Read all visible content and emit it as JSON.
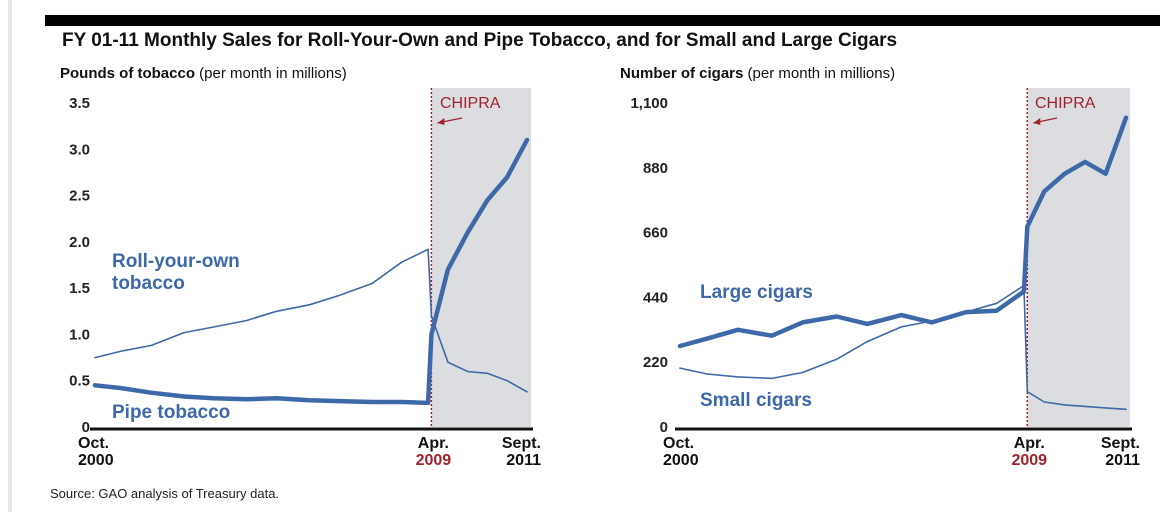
{
  "title": "FY 01-11 Monthly Sales for Roll-Your-Own and Pipe Tobacco, and for Small and Large Cigars",
  "source": "Source: GAO analysis of Treasury data.",
  "colors": {
    "series": "#3e69a8",
    "annotation": "#a0222e",
    "shade": "#dcdde0",
    "axis": "#111111"
  },
  "chart_data": [
    {
      "type": "line",
      "ylabel_bold": "Pounds of tobacco",
      "ylabel_rest": " (per month in millions)",
      "ylim": [
        0,
        3.5
      ],
      "yticks": [
        0,
        0.5,
        1.0,
        1.5,
        2.0,
        2.5,
        3.0,
        3.5
      ],
      "ytick_labels": [
        "0",
        "0.5",
        "1.0",
        "1.5",
        "2.0",
        "2.5",
        "3.0",
        "3.5"
      ],
      "xlim": [
        "2000-10",
        "2011-09"
      ],
      "x_labels": [
        {
          "x": "2000-10",
          "lines": [
            "Oct.",
            "2000"
          ],
          "highlight": false
        },
        {
          "x": "2009-04",
          "lines": [
            "Apr.",
            "2009"
          ],
          "highlight": true
        },
        {
          "x": "2011-09",
          "lines": [
            "Sept.",
            "2011"
          ],
          "highlight": false
        }
      ],
      "annotation": {
        "label": "CHIPRA",
        "x": "2009-04",
        "shade_to": "2011-09"
      },
      "series": [
        {
          "label_lines": [
            "Roll-your-own",
            "tobacco"
          ],
          "width": "thin",
          "x": [
            "2000-10",
            "2001-06",
            "2002-03",
            "2003-01",
            "2003-10",
            "2004-08",
            "2005-05",
            "2006-03",
            "2006-12",
            "2007-10",
            "2008-07",
            "2009-03",
            "2009-04",
            "2009-09",
            "2010-03",
            "2010-09",
            "2011-03",
            "2011-09"
          ],
          "y": [
            0.75,
            0.82,
            0.88,
            1.02,
            1.08,
            1.15,
            1.25,
            1.32,
            1.42,
            1.55,
            1.78,
            1.92,
            1.2,
            0.7,
            0.6,
            0.58,
            0.5,
            0.38
          ]
        },
        {
          "label_lines": [
            "Pipe tobacco"
          ],
          "width": "thick",
          "x": [
            "2000-10",
            "2001-06",
            "2002-03",
            "2003-01",
            "2003-10",
            "2004-08",
            "2005-05",
            "2006-03",
            "2006-12",
            "2007-10",
            "2008-07",
            "2009-03",
            "2009-04",
            "2009-09",
            "2010-03",
            "2010-09",
            "2011-03",
            "2011-09"
          ],
          "y": [
            0.45,
            0.42,
            0.37,
            0.33,
            0.31,
            0.3,
            0.31,
            0.29,
            0.28,
            0.27,
            0.27,
            0.26,
            1.0,
            1.7,
            2.1,
            2.45,
            2.7,
            3.1
          ]
        }
      ]
    },
    {
      "type": "line",
      "ylabel_bold": "Number of cigars",
      "ylabel_rest": " (per month in millions)",
      "ylim": [
        0,
        1100
      ],
      "yticks": [
        0,
        220,
        440,
        660,
        880,
        1100
      ],
      "ytick_labels": [
        "0",
        "220",
        "440",
        "660",
        "880",
        "1,100"
      ],
      "xlim": [
        "2000-10",
        "2011-09"
      ],
      "x_labels": [
        {
          "x": "2000-10",
          "lines": [
            "Oct.",
            "2000"
          ],
          "highlight": false
        },
        {
          "x": "2009-04",
          "lines": [
            "Apr.",
            "2009"
          ],
          "highlight": true
        },
        {
          "x": "2011-09",
          "lines": [
            "Sept.",
            "2011"
          ],
          "highlight": false
        }
      ],
      "annotation": {
        "label": "CHIPRA",
        "x": "2009-04",
        "shade_to": "2011-09"
      },
      "series": [
        {
          "label_lines": [
            "Large cigars"
          ],
          "width": "thick",
          "x": [
            "2000-10",
            "2001-06",
            "2002-03",
            "2003-01",
            "2003-10",
            "2004-08",
            "2005-05",
            "2006-03",
            "2006-12",
            "2007-10",
            "2008-07",
            "2009-03",
            "2009-04",
            "2009-09",
            "2010-03",
            "2010-09",
            "2011-03",
            "2011-09"
          ],
          "y": [
            275,
            300,
            330,
            310,
            355,
            375,
            350,
            380,
            355,
            390,
            395,
            460,
            680,
            800,
            860,
            900,
            860,
            1050
          ]
        },
        {
          "label_lines": [
            "Small cigars"
          ],
          "width": "thin",
          "x": [
            "2000-10",
            "2001-06",
            "2002-03",
            "2003-01",
            "2003-10",
            "2004-08",
            "2005-05",
            "2006-03",
            "2006-12",
            "2007-10",
            "2008-07",
            "2009-03",
            "2009-04",
            "2009-09",
            "2010-03",
            "2010-09",
            "2011-03",
            "2011-09"
          ],
          "y": [
            200,
            180,
            170,
            165,
            185,
            230,
            290,
            340,
            360,
            390,
            420,
            480,
            120,
            85,
            75,
            70,
            65,
            60
          ]
        }
      ]
    }
  ]
}
